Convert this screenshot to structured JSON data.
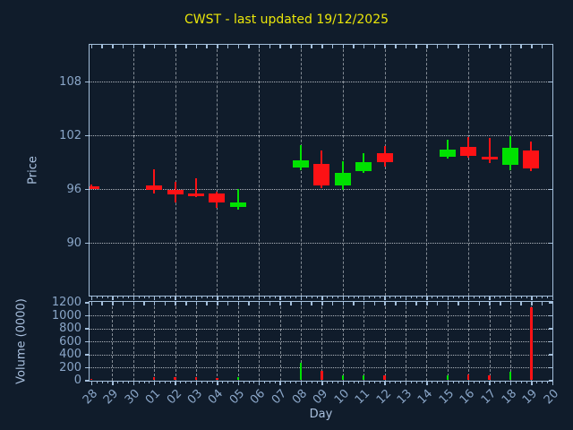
{
  "title": "CWST - last updated 19/12/2025",
  "colors": {
    "background": "#101c2b",
    "spine": "#a4bfdb",
    "tick_label": "#8aa6c8",
    "axis_label": "#a9c0de",
    "title": "#e9e50a",
    "grid_horizontal": "#cdd2d8",
    "grid_vertical": "#a2a9b0",
    "up": "#00e100",
    "down": "#fd1215"
  },
  "axes": {
    "price": {
      "label": "Price",
      "ticks": [
        90,
        96,
        102,
        108
      ],
      "ylim": [
        84.15,
        112.15
      ]
    },
    "volume": {
      "label": "Volume (0000)",
      "ticks": [
        0,
        200,
        400,
        600,
        800,
        1000,
        1200
      ],
      "ylim": [
        0,
        1215
      ]
    },
    "x": {
      "label": "Day",
      "categories": [
        "28",
        "29",
        "30",
        "01",
        "02",
        "03",
        "04",
        "05",
        "06",
        "07",
        "08",
        "09",
        "10",
        "11",
        "12",
        "13",
        "14",
        "15",
        "16",
        "17",
        "18",
        "19",
        "20"
      ]
    }
  },
  "chart_data": {
    "type": "candlestick",
    "title": "CWST - last updated 19/12/2025",
    "xlabel": "Day",
    "ylabel_top": "Price",
    "ylabel_bottom": "Volume (0000)",
    "x_categories": [
      "28",
      "29",
      "30",
      "01",
      "02",
      "03",
      "04",
      "05",
      "06",
      "07",
      "08",
      "09",
      "10",
      "11",
      "12",
      "13",
      "14",
      "15",
      "16",
      "17",
      "18",
      "19",
      "20"
    ],
    "price_ylim": [
      84.15,
      112.15
    ],
    "volume_ylim": [
      0,
      1215
    ],
    "grid": true,
    "legend": "none",
    "up_color": "#00e100",
    "down_color": "#fd1215",
    "candles": [
      {
        "day": "28",
        "x_index": 0,
        "open": 96.3,
        "high": 96.5,
        "low": 96.0,
        "close": 96.1,
        "volume": 15,
        "direction": "down"
      },
      {
        "day": "01",
        "x_index": 3,
        "open": 96.4,
        "high": 98.2,
        "low": 95.5,
        "close": 95.9,
        "volume": 45,
        "direction": "down"
      },
      {
        "day": "02",
        "x_index": 4,
        "open": 95.9,
        "high": 96.8,
        "low": 94.5,
        "close": 95.4,
        "volume": 45,
        "direction": "down"
      },
      {
        "day": "03",
        "x_index": 5,
        "open": 95.5,
        "high": 97.2,
        "low": 95.1,
        "close": 95.3,
        "volume": 45,
        "direction": "down"
      },
      {
        "day": "04",
        "x_index": 6,
        "open": 95.5,
        "high": 95.7,
        "low": 93.9,
        "close": 94.5,
        "volume": 40,
        "direction": "down"
      },
      {
        "day": "05",
        "x_index": 7,
        "open": 94.0,
        "high": 96.0,
        "low": 93.7,
        "close": 94.5,
        "volume": 45,
        "direction": "up"
      },
      {
        "day": "08",
        "x_index": 10,
        "open": 98.4,
        "high": 100.9,
        "low": 98.1,
        "close": 99.2,
        "volume": 270,
        "direction": "up"
      },
      {
        "day": "09",
        "x_index": 11,
        "open": 98.8,
        "high": 100.3,
        "low": 96.1,
        "close": 96.4,
        "volume": 145,
        "direction": "down"
      },
      {
        "day": "10",
        "x_index": 12,
        "open": 96.4,
        "high": 99.1,
        "low": 95.9,
        "close": 97.8,
        "volume": 80,
        "direction": "up"
      },
      {
        "day": "11",
        "x_index": 13,
        "open": 98.0,
        "high": 100.0,
        "low": 97.8,
        "close": 99.0,
        "volume": 70,
        "direction": "up"
      },
      {
        "day": "12",
        "x_index": 14,
        "open": 100.0,
        "high": 100.8,
        "low": 98.5,
        "close": 99.0,
        "volume": 70,
        "direction": "down"
      },
      {
        "day": "15",
        "x_index": 17,
        "open": 99.6,
        "high": 101.5,
        "low": 99.4,
        "close": 100.4,
        "volume": 80,
        "direction": "up"
      },
      {
        "day": "16",
        "x_index": 18,
        "open": 100.7,
        "high": 101.8,
        "low": 99.5,
        "close": 99.7,
        "volume": 90,
        "direction": "down"
      },
      {
        "day": "17",
        "x_index": 19,
        "open": 99.6,
        "high": 101.7,
        "low": 98.9,
        "close": 99.3,
        "volume": 80,
        "direction": "down"
      },
      {
        "day": "18",
        "x_index": 20,
        "open": 98.7,
        "high": 101.9,
        "low": 98.1,
        "close": 100.6,
        "volume": 125,
        "direction": "up"
      },
      {
        "day": "19",
        "x_index": 21,
        "open": 100.3,
        "high": 101.3,
        "low": 98.0,
        "close": 98.3,
        "volume": 1130,
        "direction": "down"
      }
    ]
  }
}
